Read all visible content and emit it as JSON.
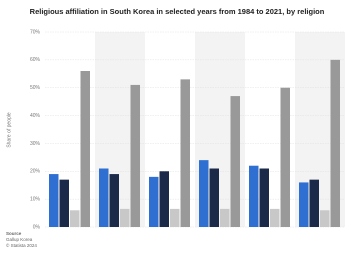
{
  "chart_data": {
    "type": "bar",
    "title": "Religious affiliation in South Korea in selected years from 1984 to 2021, by religion",
    "y_label": "Share of people",
    "categories": [
      null,
      null,
      null,
      null,
      null,
      null
    ],
    "series": [
      {
        "color": "#2f6fd1",
        "values": [
          19,
          21,
          18,
          24,
          22,
          16
        ]
      },
      {
        "color": "#1b2a49",
        "values": [
          17,
          19,
          20,
          21,
          21,
          17
        ]
      },
      {
        "color": "#c8c8c8",
        "values": [
          6,
          6.5,
          6.5,
          6.5,
          6.5,
          6
        ]
      },
      {
        "color": "#999999",
        "values": [
          56,
          51,
          53,
          47,
          50,
          60
        ]
      }
    ],
    "ylim": [
      0,
      70
    ],
    "yticks": [
      {
        "value": 0,
        "label": "0%"
      },
      {
        "value": 10,
        "label": "10%"
      },
      {
        "value": 20,
        "label": "20%"
      },
      {
        "value": 30,
        "label": "30%"
      },
      {
        "value": 40,
        "label": "40%"
      },
      {
        "value": 50,
        "label": "50%"
      },
      {
        "value": 60,
        "label": "60%"
      },
      {
        "value": 70,
        "label": "70%"
      }
    ],
    "grid": true,
    "source": {
      "heading": "Source",
      "lines": [
        "Gallup Korea",
        "© Statista 2024"
      ]
    }
  }
}
